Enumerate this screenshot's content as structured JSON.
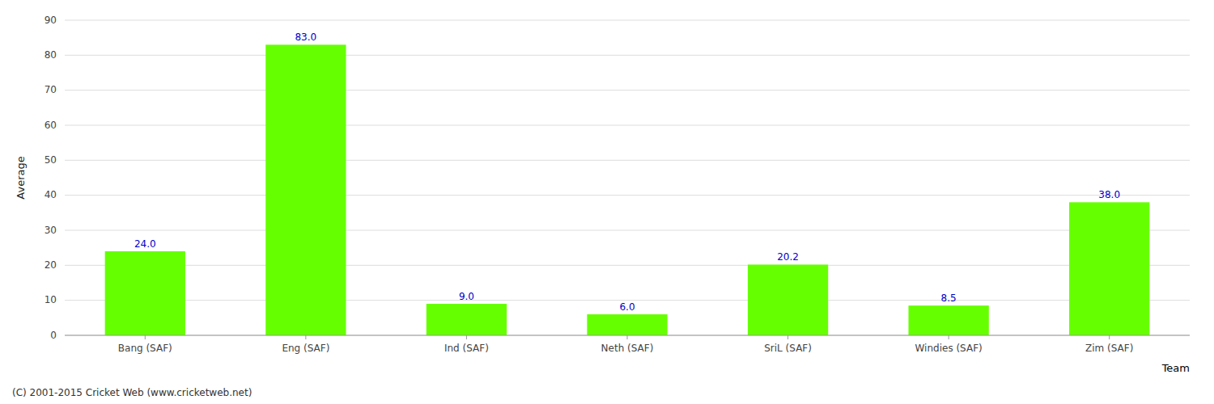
{
  "chart_data": {
    "type": "bar",
    "categories": [
      "Bang (SAF)",
      "Eng (SAF)",
      "Ind (SAF)",
      "Neth (SAF)",
      "SriL (SAF)",
      "Windies (SAF)",
      "Zim (SAF)"
    ],
    "values": [
      24.0,
      83.0,
      9.0,
      6.0,
      20.2,
      8.5,
      38.0
    ],
    "value_labels": [
      "24.0",
      "83.0",
      "9.0",
      "6.0",
      "20.2",
      "8.5",
      "38.0"
    ],
    "data_labels": true,
    "color": "#66ff00",
    "ylabel": "Average",
    "xlabel": "Team",
    "ylim": [
      0,
      90
    ],
    "yticks": [
      0,
      10,
      20,
      30,
      40,
      50,
      60,
      70,
      80,
      90
    ],
    "grid": true,
    "annotations": [
      "(C) 2001-2015 Cricket Web (www.cricketweb.net)"
    ]
  }
}
